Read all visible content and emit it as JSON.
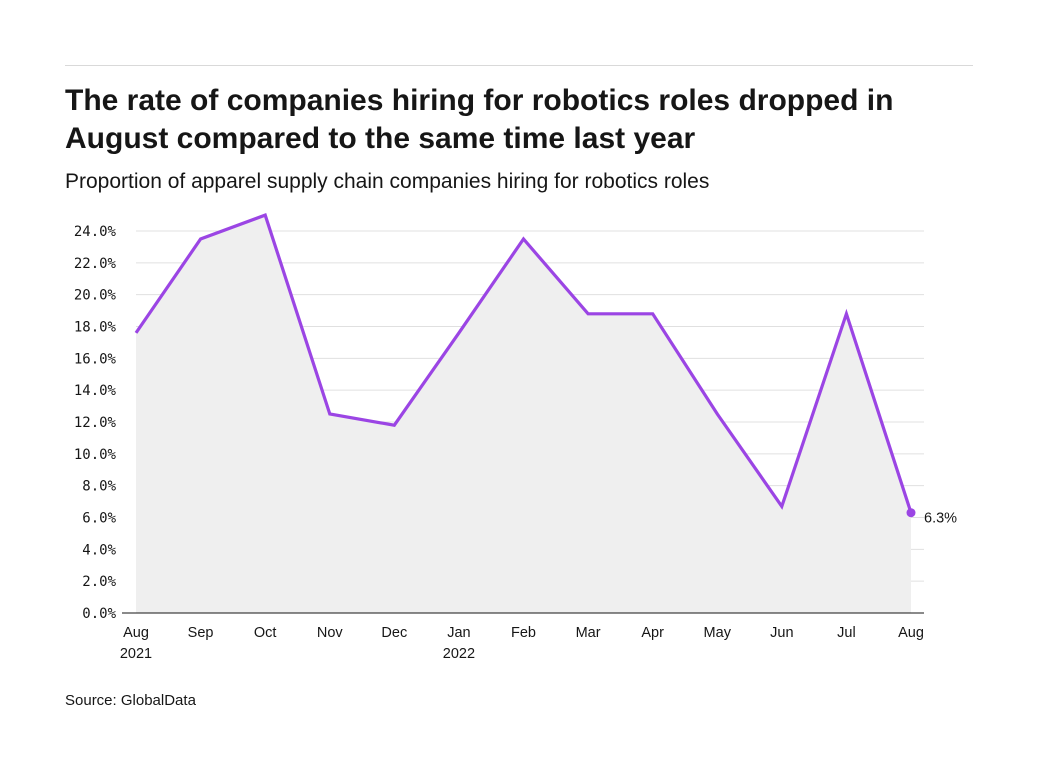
{
  "header": {
    "title": "The rate of companies hiring for robotics roles dropped in August compared to the same time last year",
    "subtitle": "Proportion of apparel supply chain companies hiring for robotics roles"
  },
  "footer": {
    "source": "Source: GlobalData"
  },
  "colors": {
    "line": "#9b45e4",
    "area": "#efefef",
    "grid": "#e0e0e0",
    "axis": "#161616"
  },
  "chart_data": {
    "type": "area",
    "title": "The rate of companies hiring for robotics roles dropped in August compared to the same time last year",
    "subtitle": "Proportion of apparel supply chain companies hiring for robotics roles",
    "xlabel": "",
    "ylabel": "",
    "categories": [
      "Aug",
      "Sep",
      "Oct",
      "Nov",
      "Dec",
      "Jan",
      "Feb",
      "Mar",
      "Apr",
      "May",
      "Jun",
      "Jul",
      "Aug"
    ],
    "category_sublabels": [
      "2021",
      "",
      "",
      "",
      "",
      "2022",
      "",
      "",
      "",
      "",
      "",
      "",
      ""
    ],
    "series": [
      {
        "name": "Proportion of companies hiring for robotics roles",
        "values": [
          17.6,
          23.5,
          25.0,
          12.5,
          11.8,
          17.6,
          23.5,
          18.8,
          18.8,
          12.5,
          6.7,
          18.8,
          6.3
        ]
      }
    ],
    "ylim": [
      0,
      24
    ],
    "yticks": [
      0,
      2,
      4,
      6,
      8,
      10,
      12,
      14,
      16,
      18,
      20,
      22,
      24
    ],
    "ytick_labels": [
      "0.0%",
      "2.0%",
      "4.0%",
      "6.0%",
      "8.0%",
      "10.0%",
      "12.0%",
      "14.0%",
      "16.0%",
      "18.0%",
      "20.0%",
      "22.0%",
      "24.0%"
    ],
    "grid": true,
    "legend": "none",
    "end_label": "6.3%"
  }
}
